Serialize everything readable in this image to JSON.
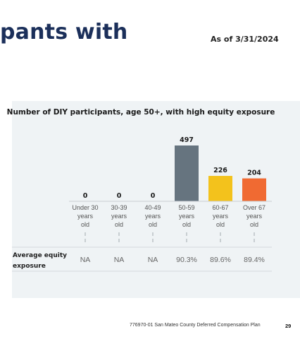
{
  "header": {
    "title_fragment": "pants with",
    "as_of": "As of 3/31/2024"
  },
  "chart_data": {
    "type": "bar",
    "title": "Number of DIY participants, age 50+, with high equity exposure",
    "categories": [
      "Under 30 years old",
      "30-39 years old",
      "40-49 years old",
      "50-59 years old",
      "60-67 years old",
      "Over 67 years old"
    ],
    "category_lines": [
      [
        "Under 30",
        "years",
        "old"
      ],
      [
        "30-39",
        "years",
        "old"
      ],
      [
        "40-49",
        "years",
        "old"
      ],
      [
        "50-59",
        "years",
        "old"
      ],
      [
        "60-67",
        "years",
        "old"
      ],
      [
        "Over 67",
        "years",
        "old"
      ]
    ],
    "values": [
      0,
      0,
      0,
      497,
      226,
      204
    ],
    "value_labels": [
      "0",
      "0",
      "0",
      "497",
      "226",
      "204"
    ],
    "colors": [
      "#7a8592",
      "#7a8592",
      "#7a8592",
      "#66747f",
      "#f3c21c",
      "#f06a32"
    ],
    "ylim": [
      0,
      497
    ],
    "grid": false,
    "table": {
      "row_label_lines": [
        "Average equity",
        "exposure"
      ],
      "values": [
        "NA",
        "NA",
        "NA",
        "90.3%",
        "89.6%",
        "89.4%"
      ]
    }
  },
  "footer": {
    "doc": "776970-01 San Mateo County Deferred Compensation Plan",
    "page": "29"
  }
}
